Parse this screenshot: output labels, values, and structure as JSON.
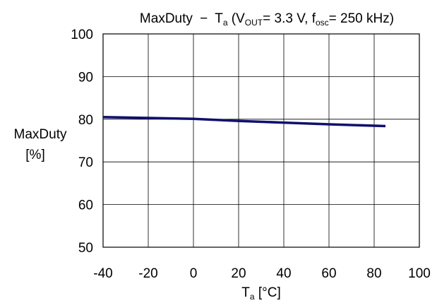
{
  "chart_data": {
    "type": "line",
    "title": {
      "name": "MaxDuty",
      "dash": "−",
      "t": "T",
      "t_sub": "a",
      "open": " (V",
      "v_sub": "OUT",
      "v_val": "= 3.3 V, f",
      "f_sub": "osc",
      "f_val": "= 250 kHz)"
    },
    "xlabel": {
      "t": "T",
      "t_sub": "a",
      "unit": " [°C]"
    },
    "ylabel": {
      "line1": "MaxDuty",
      "line2": "[%]"
    },
    "xlim": [
      -40,
      100
    ],
    "ylim": [
      50,
      100
    ],
    "xticks": [
      -40,
      -20,
      0,
      20,
      40,
      60,
      80,
      100
    ],
    "yticks": [
      50,
      60,
      70,
      80,
      90,
      100
    ],
    "grid": true,
    "series": [
      {
        "color": "#10106e",
        "x": [
          -40,
          -20,
          0,
          20,
          40,
          60,
          85
        ],
        "y": [
          80.5,
          80.3,
          80.1,
          79.6,
          79.2,
          78.8,
          78.4
        ]
      }
    ]
  }
}
